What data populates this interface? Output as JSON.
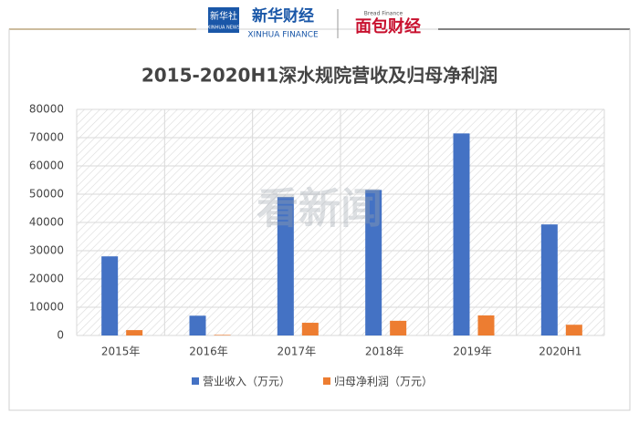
{
  "header": {
    "logo1": "新华社",
    "logo1_sub": "XINHUA NEWS",
    "logo2": "新华财经",
    "logo2_sub": "XINHUA FINANCE",
    "logo3": "面包财经",
    "logo3_sub": "Bread Finance"
  },
  "watermark": "看新闻",
  "chart_data": {
    "type": "bar",
    "title": "2015-2020H1深水规院营收及归母净利润",
    "categories": [
      "2015年",
      "2016年",
      "2017年",
      "2018年",
      "2019年",
      "2020H1"
    ],
    "series": [
      {
        "name": "营业收入（万元）",
        "color": "#4472c4",
        "values": [
          28000,
          7000,
          49000,
          51500,
          71500,
          39300
        ]
      },
      {
        "name": "归母净利润（万元）",
        "color": "#ed7d31",
        "values": [
          1900,
          200,
          4500,
          5200,
          7100,
          3800
        ]
      }
    ],
    "ylim": [
      0,
      80000
    ],
    "yticks": [
      0,
      10000,
      20000,
      30000,
      40000,
      50000,
      60000,
      70000,
      80000
    ],
    "grid": true,
    "legend": "bottom"
  }
}
